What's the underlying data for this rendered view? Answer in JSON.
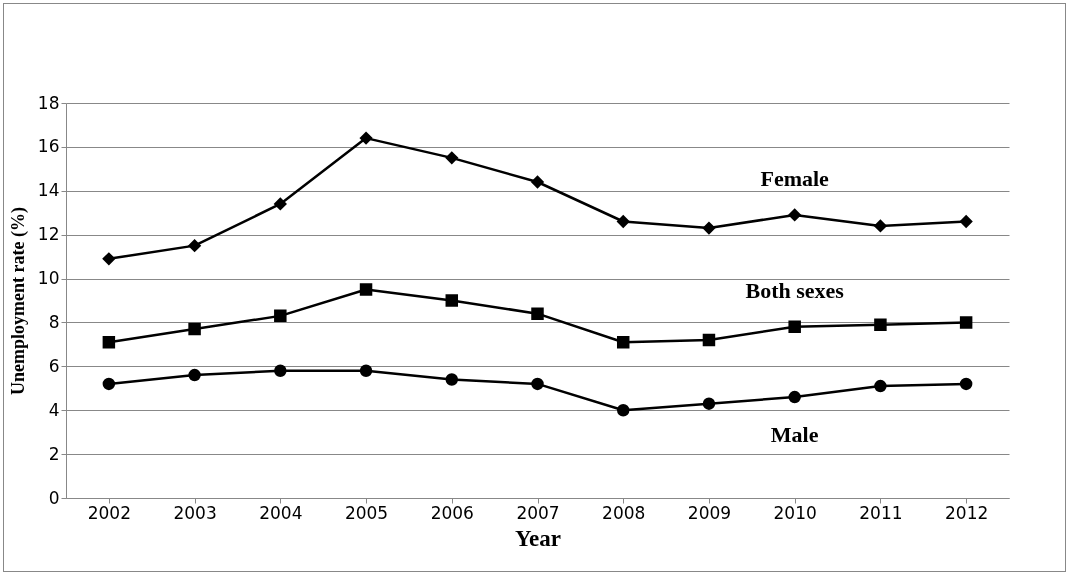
{
  "chart_data": {
    "type": "line",
    "xlabel": "Year",
    "ylabel": "Unemployment rate (%)",
    "x": [
      2002,
      2003,
      2004,
      2005,
      2006,
      2007,
      2008,
      2009,
      2010,
      2011,
      2012
    ],
    "xlim": [
      2001.5,
      2012.5
    ],
    "xticks": [
      2002,
      2003,
      2004,
      2005,
      2006,
      2007,
      2008,
      2009,
      2010,
      2011,
      2012
    ],
    "ylim": [
      0,
      18
    ],
    "yticks": [
      0,
      2,
      4,
      6,
      8,
      10,
      12,
      14,
      16,
      18
    ],
    "grid": "y",
    "series": [
      {
        "name": "Female",
        "color": "#000000",
        "marker": "diamond",
        "values": [
          10.9,
          11.5,
          13.4,
          16.4,
          15.5,
          14.4,
          12.6,
          12.3,
          12.9,
          12.4,
          12.6
        ]
      },
      {
        "name": "Both sexes",
        "color": "#000000",
        "marker": "square",
        "values": [
          7.1,
          7.7,
          8.3,
          9.5,
          9.0,
          8.4,
          7.1,
          7.2,
          7.8,
          7.9,
          8.0
        ]
      },
      {
        "name": "Male",
        "color": "#000000",
        "marker": "circle",
        "values": [
          5.2,
          5.6,
          5.8,
          5.8,
          5.4,
          5.2,
          4.0,
          4.3,
          4.6,
          5.1,
          5.2
        ]
      }
    ]
  }
}
